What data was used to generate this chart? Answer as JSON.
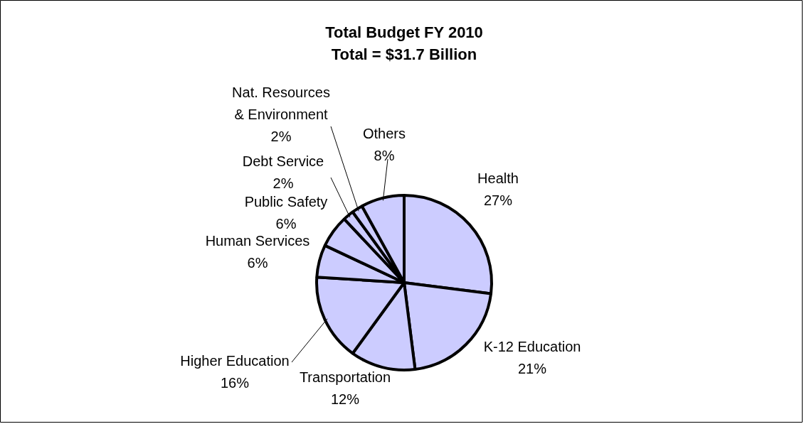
{
  "chart_data": {
    "type": "pie",
    "title": "Total Budget FY 2010",
    "subtitle": "Total = $31.7 Billion",
    "categories": [
      "Health",
      "K-12 Education",
      "Transportation",
      "Higher Education",
      "Human Services",
      "Public Safety",
      "Debt Service",
      "Nat. Resources & Environment",
      "Others"
    ],
    "values": [
      27,
      21,
      12,
      16,
      6,
      6,
      2,
      2,
      8
    ],
    "colors": [
      "#ccccff",
      "#ccccff",
      "#ccccff",
      "#ccccff",
      "#ccccff",
      "#ccccff",
      "#ccccff",
      "#ccccff",
      "#ccccff"
    ],
    "value_labels": [
      "27%",
      "21%",
      "12%",
      "16%",
      "6%",
      "6%",
      "2%",
      "2%",
      "8%"
    ],
    "legend": false
  }
}
